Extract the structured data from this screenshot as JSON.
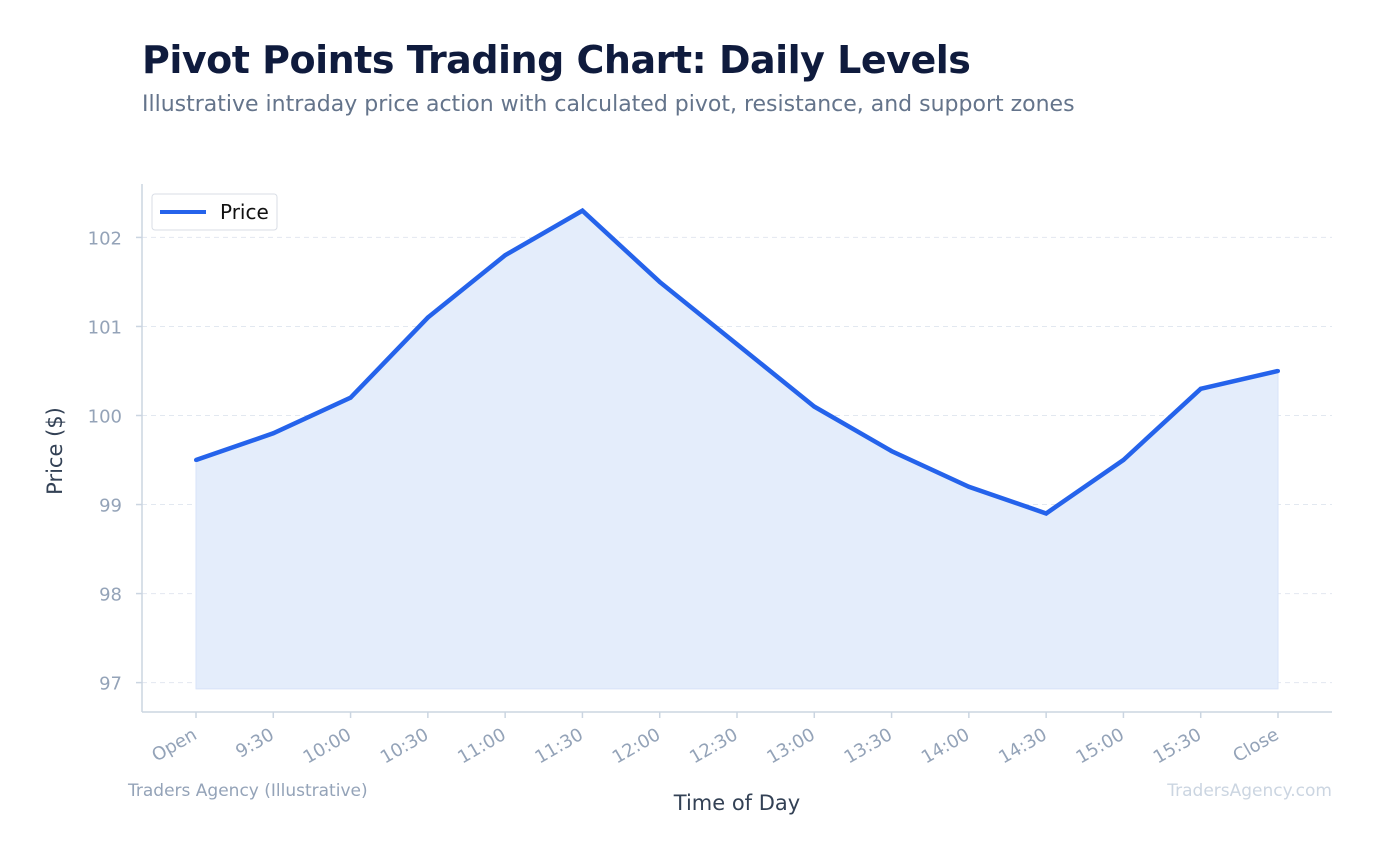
{
  "chart_data": {
    "type": "area",
    "title": "Pivot Points Trading Chart: Daily Levels",
    "subtitle": "Illustrative intraday price action with calculated pivot, resistance, and support zones",
    "xlabel": "Time of Day",
    "ylabel": "Price ($)",
    "categories": [
      "Open",
      "9:30",
      "10:00",
      "10:30",
      "11:00",
      "11:30",
      "12:00",
      "12:30",
      "13:00",
      "13:30",
      "14:00",
      "14:30",
      "15:00",
      "15:30",
      "Close"
    ],
    "series": [
      {
        "name": "Price",
        "values": [
          99.5,
          99.8,
          100.2,
          101.1,
          101.8,
          102.3,
          101.5,
          100.8,
          100.1,
          99.6,
          99.2,
          98.9,
          99.5,
          100.3,
          100.5
        ],
        "color": "#2563eb",
        "fill": "#e4edfb"
      }
    ],
    "yticks": [
      97,
      98,
      99,
      100,
      101,
      102
    ],
    "ylim": [
      96.67,
      102.6
    ],
    "area_baseline": 96.93,
    "grid": true,
    "legend_position": "top-left"
  },
  "footer": {
    "source": "Traders Agency (Illustrative)",
    "watermark": "TradersAgency.com"
  },
  "colors": {
    "title": "#0f1b3d",
    "subtitle": "#64748b",
    "axis": "#cbd5e1",
    "tick_text": "#94a3b8",
    "grid": "#e2e8f0",
    "axis_title": "#334155",
    "footer_left": "#94a3b8",
    "footer_right": "#cbd5e1"
  }
}
